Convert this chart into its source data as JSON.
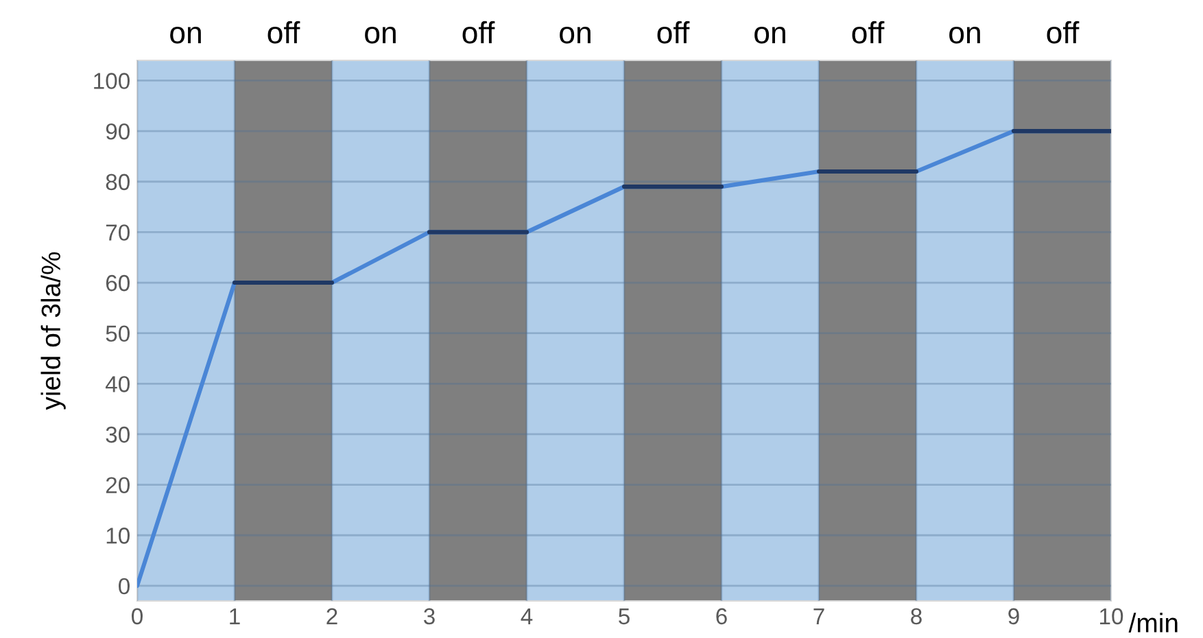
{
  "chart_data": {
    "type": "line",
    "xlabel": "/min",
    "ylabel": "yield of 3la/%",
    "xlim": [
      0,
      10
    ],
    "xticks": [
      0,
      1,
      2,
      3,
      4,
      5,
      6,
      7,
      8,
      9,
      10
    ],
    "ylim": [
      -3,
      104
    ],
    "yticks": [
      0,
      10,
      20,
      30,
      40,
      50,
      60,
      70,
      80,
      90,
      100
    ],
    "grid": true,
    "marker": "none",
    "line_style": "solid",
    "series": [
      {
        "color": "#4a86d6",
        "x": [
          0,
          1,
          2,
          3,
          4,
          5,
          6,
          7,
          8,
          9,
          10
        ],
        "values": [
          0,
          60,
          60,
          70,
          70,
          79,
          79,
          82,
          82,
          90,
          90
        ]
      },
      {
        "color": "#1f3864",
        "x": [
          1,
          2,
          2.5,
          3,
          4,
          4.5,
          5,
          6,
          6.5,
          7,
          8,
          8.5,
          9,
          10
        ],
        "values": [
          60,
          60,
          null,
          70,
          70,
          null,
          79,
          79,
          null,
          82,
          82,
          null,
          90,
          90
        ]
      }
    ],
    "bands": [
      {
        "axis": "x",
        "from": 0,
        "to": 1,
        "label": "on",
        "color": "#b0cde9"
      },
      {
        "axis": "x",
        "from": 1,
        "to": 2,
        "label": "off",
        "color": "#7f7f7f"
      },
      {
        "axis": "x",
        "from": 2,
        "to": 3,
        "label": "on",
        "color": "#b0cde9"
      },
      {
        "axis": "x",
        "from": 3,
        "to": 4,
        "label": "off",
        "color": "#7f7f7f"
      },
      {
        "axis": "x",
        "from": 4,
        "to": 5,
        "label": "on",
        "color": "#b0cde9"
      },
      {
        "axis": "x",
        "from": 5,
        "to": 6,
        "label": "off",
        "color": "#7f7f7f"
      },
      {
        "axis": "x",
        "from": 6,
        "to": 7,
        "label": "on",
        "color": "#b0cde9"
      },
      {
        "axis": "x",
        "from": 7,
        "to": 8,
        "label": "off",
        "color": "#7f7f7f"
      },
      {
        "axis": "x",
        "from": 8,
        "to": 9,
        "label": "on",
        "color": "#b0cde9"
      },
      {
        "axis": "x",
        "from": 9,
        "to": 10,
        "label": "off",
        "color": "#7f7f7f"
      }
    ]
  }
}
